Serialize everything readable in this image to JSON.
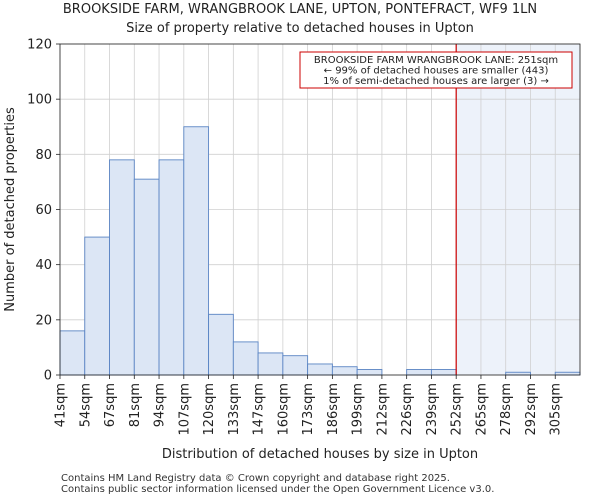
{
  "chart_data": {
    "type": "bar",
    "title": "BROOKSIDE FARM, WRANGBROOK LANE, UPTON, PONTEFRACT, WF9 1LN",
    "subtitle": "Size of property relative to detached houses in Upton",
    "xlabel": "Distribution of detached houses by size in Upton",
    "ylabel": "Number of detached properties",
    "categories": [
      "41sqm",
      "54sqm",
      "67sqm",
      "81sqm",
      "94sqm",
      "107sqm",
      "120sqm",
      "133sqm",
      "147sqm",
      "160sqm",
      "173sqm",
      "186sqm",
      "199sqm",
      "212sqm",
      "226sqm",
      "239sqm",
      "252sqm",
      "265sqm",
      "278sqm",
      "292sqm",
      "305sqm"
    ],
    "values": [
      16,
      50,
      78,
      71,
      78,
      90,
      22,
      12,
      8,
      7,
      4,
      3,
      2,
      0,
      2,
      2,
      0,
      0,
      1,
      0,
      1
    ],
    "ylim": [
      0,
      120
    ],
    "yticks": [
      0,
      20,
      40,
      60,
      80,
      100,
      120
    ],
    "grid": true,
    "bar_color": "#dce6f5",
    "bar_edge_color": "#5b85c4",
    "marker": {
      "value_index": 16,
      "color": "#cc0000",
      "shade_color": "#edf2fa"
    },
    "annotation": {
      "lines": [
        "BROOKSIDE FARM WRANGBROOK LANE: 251sqm",
        "← 99% of detached houses are smaller (443)",
        "1% of semi-detached houses are larger (3) →"
      ],
      "border_color": "#cc0000"
    }
  },
  "footer": {
    "line1": "Contains HM Land Registry data © Crown copyright and database right 2025.",
    "line2": "Contains public sector information licensed under the Open Government Licence v3.0."
  }
}
